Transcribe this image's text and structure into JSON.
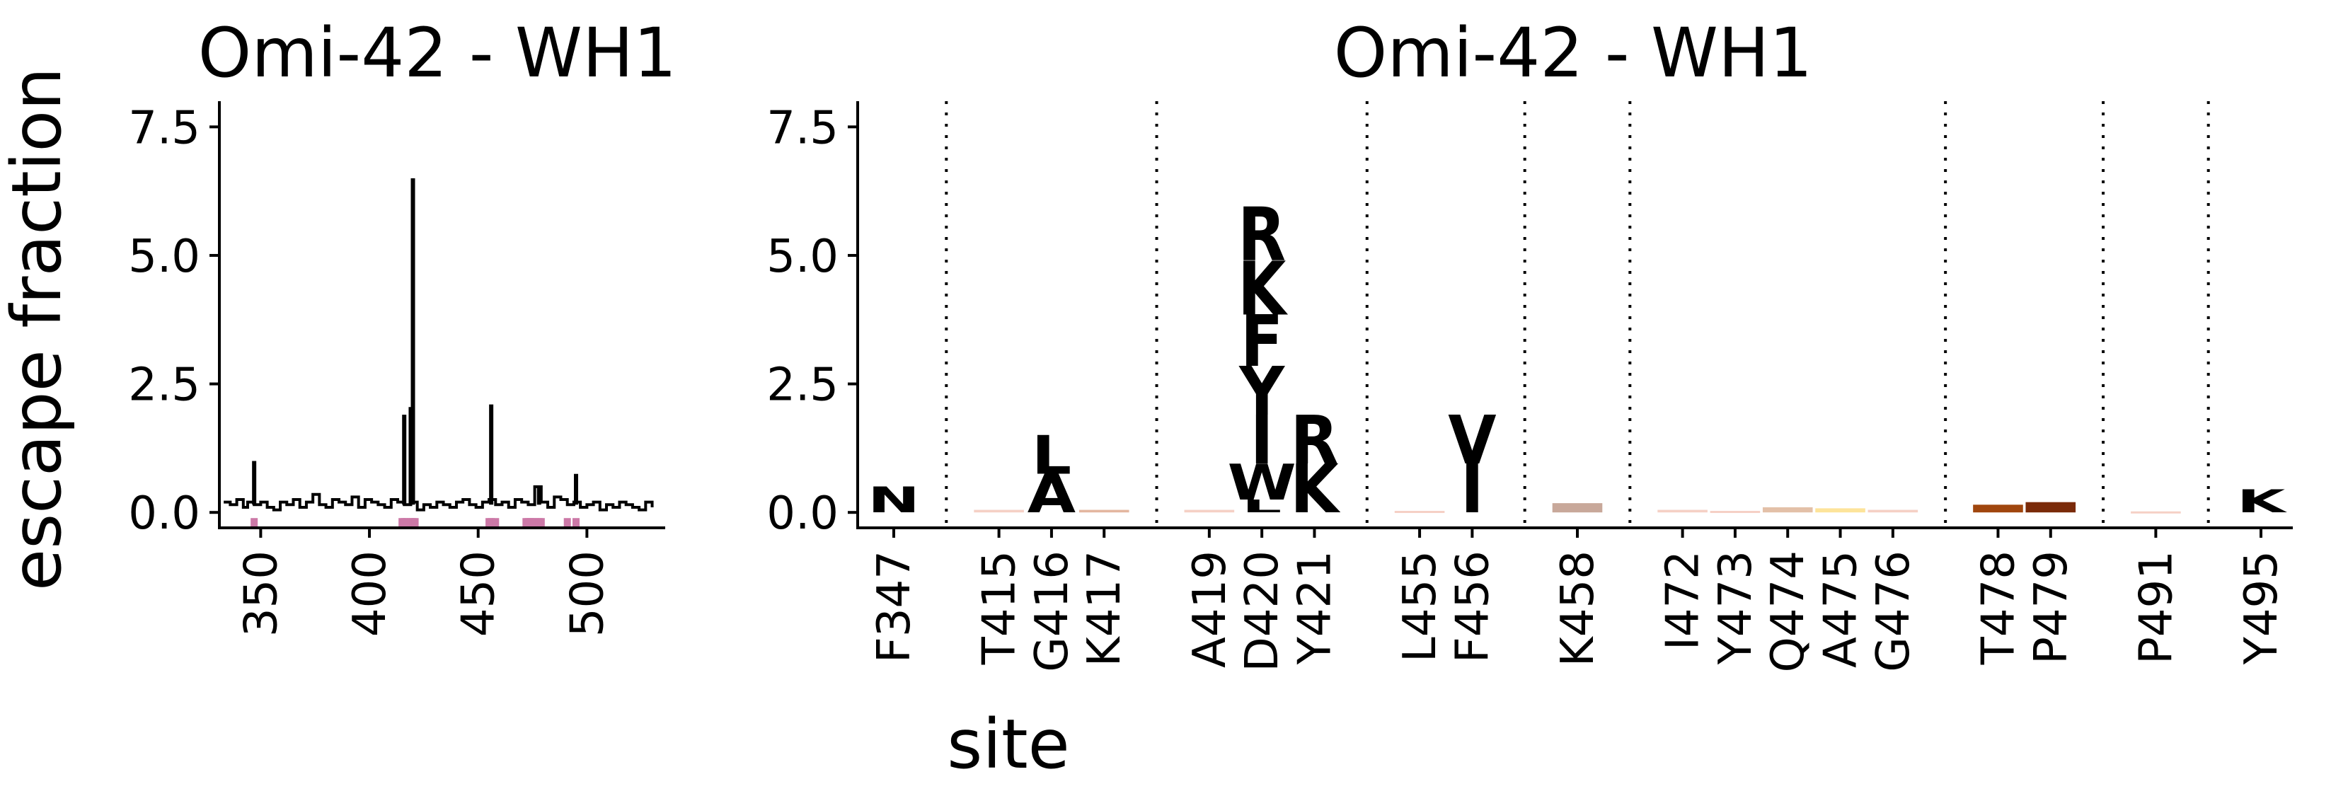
{
  "ylabel": "escape fraction",
  "xlabel": "site",
  "chart_data": [
    {
      "type": "line",
      "title": "Omi-42 - WH1",
      "xlabel": "",
      "ylabel": "escape fraction",
      "xlim": [
        331,
        536
      ],
      "ylim": [
        -0.3,
        8.0
      ],
      "xticks": [
        350,
        400,
        450,
        500
      ],
      "yticks": [
        0.0,
        2.5,
        5.0,
        7.5
      ],
      "ytick_labels": [
        "0.0",
        "2.5",
        "5.0",
        "7.5"
      ],
      "grid": false,
      "baseline": {
        "x": [
          333,
          336,
          339,
          342,
          344,
          347,
          350,
          353,
          356,
          359,
          362,
          365,
          368,
          371,
          374,
          377,
          380,
          383,
          386,
          389,
          392,
          395,
          398,
          401,
          404,
          407,
          410,
          413,
          416,
          419,
          422,
          425,
          428,
          431,
          434,
          437,
          440,
          443,
          446,
          449,
          452,
          455,
          458,
          461,
          464,
          467,
          470,
          473,
          476,
          479,
          482,
          485,
          488,
          491,
          494,
          497,
          500,
          503,
          506,
          509,
          512,
          515,
          518,
          521,
          524,
          527,
          530
        ],
        "y": [
          0.2,
          0.15,
          0.25,
          0.1,
          0.2,
          0.15,
          0.2,
          0.1,
          0.05,
          0.2,
          0.15,
          0.25,
          0.1,
          0.2,
          0.35,
          0.15,
          0.1,
          0.25,
          0.2,
          0.15,
          0.3,
          0.1,
          0.25,
          0.2,
          0.15,
          0.1,
          0.25,
          0.2,
          0.15,
          0.2,
          0.05,
          0.15,
          0.1,
          0.2,
          0.15,
          0.1,
          0.2,
          0.25,
          0.15,
          0.1,
          0.2,
          0.25,
          0.15,
          0.2,
          0.1,
          0.25,
          0.2,
          0.15,
          0.5,
          0.2,
          0.1,
          0.3,
          0.25,
          0.15,
          0.2,
          0.1,
          0.15,
          0.2,
          0.05,
          0.15,
          0.1,
          0.2,
          0.15,
          0.1,
          0.05,
          0.2,
          0.1
        ]
      },
      "spikes": [
        {
          "x": 347,
          "y": 1.0
        },
        {
          "x": 416,
          "y": 1.9
        },
        {
          "x": 419,
          "y": 2.05
        },
        {
          "x": 420,
          "y": 6.5
        },
        {
          "x": 456,
          "y": 2.1
        },
        {
          "x": 478,
          "y": 0.5
        },
        {
          "x": 495,
          "y": 0.75
        }
      ],
      "highlighted_sites": [
        347,
        415,
        416,
        417,
        419,
        420,
        421,
        455,
        456,
        458,
        472,
        473,
        474,
        475,
        476,
        478,
        479,
        491,
        495
      ],
      "highlight_color": "#CC79A7"
    },
    {
      "type": "logo",
      "title": "Omi-42 - WH1",
      "xlabel": "site",
      "ylabel": "",
      "ylim": [
        -0.3,
        8.0
      ],
      "yticks": [
        0.0,
        2.5,
        5.0,
        7.5
      ],
      "ytick_labels": [
        "0.0",
        "2.5",
        "5.0",
        "7.5"
      ],
      "grid": false,
      "categories": [
        "F347",
        "T415",
        "G416",
        "K417",
        "A419",
        "D420",
        "Y421",
        "L455",
        "F456",
        "K458",
        "I472",
        "Y473",
        "Q474",
        "A475",
        "G476",
        "T478",
        "P479",
        "P491",
        "Y495"
      ],
      "groups_after_index": [
        0,
        3,
        6,
        8,
        9,
        14,
        16,
        17
      ],
      "stacks": [
        [
          {
            "letter": "N",
            "value": 0.5,
            "color": "#FDE49A"
          }
        ],
        [
          {
            "letter": "",
            "value": 0.05,
            "color": "#F5D0C5"
          }
        ],
        [
          {
            "letter": "A",
            "value": 0.75,
            "color": "#FDE49A"
          },
          {
            "letter": "L",
            "value": 0.75,
            "color": "#FDE49A"
          }
        ],
        [
          {
            "letter": "",
            "value": 0.05,
            "color": "#E3B6A0"
          }
        ],
        [
          {
            "letter": "",
            "value": 0.05,
            "color": "#F5D0C5"
          }
        ],
        [
          {
            "letter": "L",
            "value": 0.25,
            "color": "#B9470C"
          },
          {
            "letter": "W",
            "value": 0.7,
            "color": "#C24B0A"
          },
          {
            "letter": "I",
            "value": 0.95,
            "color": "#F0821A"
          },
          {
            "letter": "Y",
            "value": 0.95,
            "color": "#D86315"
          },
          {
            "letter": "F",
            "value": 1.0,
            "color": "#C04E0E"
          },
          {
            "letter": "K",
            "value": 1.05,
            "color": "#7F3108"
          },
          {
            "letter": "R",
            "value": 1.05,
            "color": "#7A2A09"
          }
        ],
        [
          {
            "letter": "K",
            "value": 0.95,
            "color": "#D95A0E"
          },
          {
            "letter": "R",
            "value": 0.95,
            "color": "#D95A0E"
          }
        ],
        [
          {
            "letter": "",
            "value": 0.03,
            "color": "#F5D0C5"
          }
        ],
        [
          {
            "letter": "I",
            "value": 0.95,
            "color": "#FDE49A"
          },
          {
            "letter": "V",
            "value": 0.95,
            "color": "#F59520"
          }
        ],
        [
          {
            "letter": "",
            "value": 0.18,
            "color": "#C8A89A"
          }
        ],
        [
          {
            "letter": "",
            "value": 0.05,
            "color": "#F5D0C5"
          }
        ],
        [
          {
            "letter": "",
            "value": 0.03,
            "color": "#F5D0C5"
          }
        ],
        [
          {
            "letter": "",
            "value": 0.1,
            "color": "#E3C0A8"
          }
        ],
        [
          {
            "letter": "",
            "value": 0.08,
            "color": "#FDE49A"
          }
        ],
        [
          {
            "letter": "",
            "value": 0.05,
            "color": "#F5D0C5"
          }
        ],
        [
          {
            "letter": "",
            "value": 0.15,
            "color": "#A0460E"
          }
        ],
        [
          {
            "letter": "",
            "value": 0.2,
            "color": "#7A2A09"
          }
        ],
        [
          {
            "letter": "",
            "value": 0.02,
            "color": "#F5D0C5"
          }
        ],
        [
          {
            "letter": "K",
            "value": 0.45,
            "color": "#FDE49A"
          }
        ]
      ]
    }
  ]
}
